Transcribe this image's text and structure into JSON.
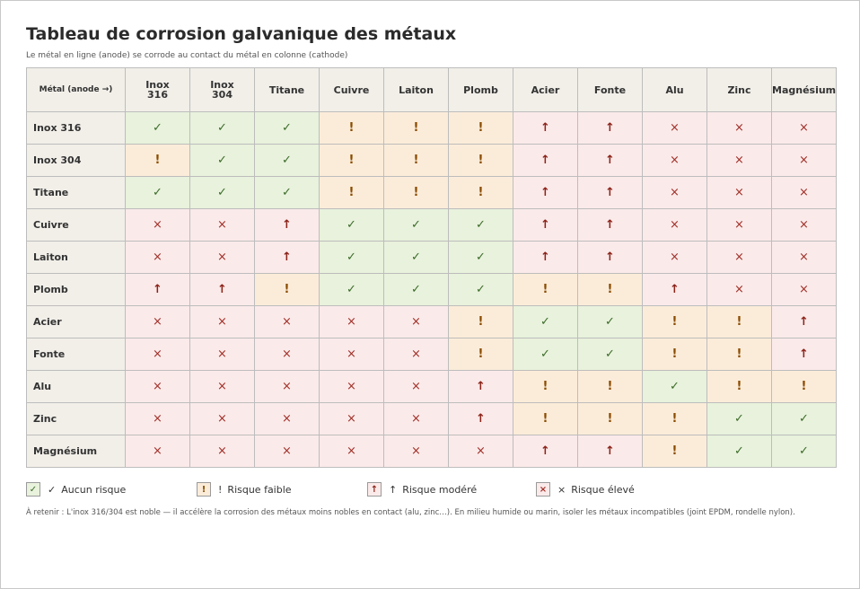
{
  "title": "Tableau de corrosion galvanique des métaux",
  "subtitle": "Le métal en ligne (anode) se corrode au contact du métal en colonne (cathode)",
  "corner_label": "Métal (anode →)",
  "columns": [
    [
      "Inox",
      "316"
    ],
    [
      "Inox",
      "304"
    ],
    [
      "Titane"
    ],
    [
      "Cuivre"
    ],
    [
      "Laiton"
    ],
    [
      "Plomb"
    ],
    [
      "Acier"
    ],
    [
      "Fonte"
    ],
    [
      "Alu"
    ],
    [
      "Zinc"
    ],
    [
      "Magnésium"
    ]
  ],
  "symbols": {
    "ok": "✓",
    "low": "!",
    "mod": "↑",
    "high": "×"
  },
  "rows": [
    {
      "label": "Inox 316",
      "cells": [
        "ok",
        "ok",
        "ok",
        "low",
        "low",
        "low",
        "mod",
        "mod",
        "high",
        "high",
        "high"
      ]
    },
    {
      "label": "Inox 304",
      "cells": [
        "low",
        "ok",
        "ok",
        "low",
        "low",
        "low",
        "mod",
        "mod",
        "high",
        "high",
        "high"
      ]
    },
    {
      "label": "Titane",
      "cells": [
        "ok",
        "ok",
        "ok",
        "low",
        "low",
        "low",
        "mod",
        "mod",
        "high",
        "high",
        "high"
      ]
    },
    {
      "label": "Cuivre",
      "cells": [
        "high",
        "high",
        "mod",
        "ok",
        "ok",
        "ok",
        "mod",
        "mod",
        "high",
        "high",
        "high"
      ]
    },
    {
      "label": "Laiton",
      "cells": [
        "high",
        "high",
        "mod",
        "ok",
        "ok",
        "ok",
        "mod",
        "mod",
        "high",
        "high",
        "high"
      ]
    },
    {
      "label": "Plomb",
      "cells": [
        "mod",
        "mod",
        "low",
        "ok",
        "ok",
        "ok",
        "low",
        "low",
        "mod",
        "high",
        "high"
      ]
    },
    {
      "label": "Acier",
      "cells": [
        "high",
        "high",
        "high",
        "high",
        "high",
        "low",
        "ok",
        "ok",
        "low",
        "low",
        "mod"
      ]
    },
    {
      "label": "Fonte",
      "cells": [
        "high",
        "high",
        "high",
        "high",
        "high",
        "low",
        "ok",
        "ok",
        "low",
        "low",
        "mod"
      ]
    },
    {
      "label": "Alu",
      "cells": [
        "high",
        "high",
        "high",
        "high",
        "high",
        "mod",
        "low",
        "low",
        "ok",
        "low",
        "low"
      ]
    },
    {
      "label": "Zinc",
      "cells": [
        "high",
        "high",
        "high",
        "high",
        "high",
        "mod",
        "low",
        "low",
        "low",
        "ok",
        "ok"
      ]
    },
    {
      "label": "Magnésium",
      "cells": [
        "high",
        "high",
        "high",
        "high",
        "high",
        "high",
        "mod",
        "mod",
        "low",
        "ok",
        "ok"
      ]
    }
  ],
  "legend": [
    {
      "level": "ok",
      "symbol": "✓",
      "label": "Aucun risque"
    },
    {
      "level": "low",
      "symbol": "!",
      "label": "Risque faible"
    },
    {
      "level": "mod",
      "symbol": "↑",
      "label": "Risque modéré"
    },
    {
      "level": "high",
      "symbol": "×",
      "label": "Risque élevé"
    }
  ],
  "note": "À retenir : L'inox 316/304 est noble — il accélère la corrosion des métaux moins nobles en contact (alu, zinc…). En milieu humide ou marin, isoler les métaux incompatibles (joint EPDM, rondelle nylon).",
  "colors": {
    "ok_bg": "#e8f2dc",
    "low_bg": "#fbecd9",
    "mod_bg": "#fbeaea",
    "high_bg": "#fbeaea",
    "header_bg": "#f2efe9"
  }
}
